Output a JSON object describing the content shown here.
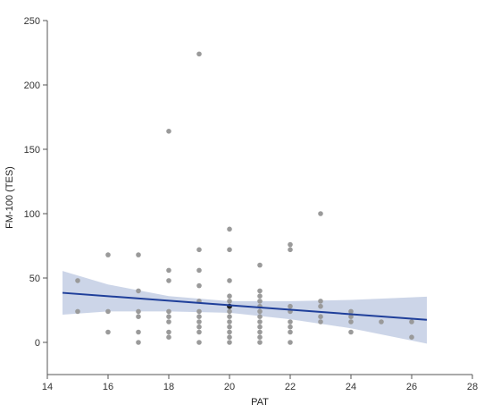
{
  "chart_data": {
    "type": "scatter",
    "xlabel": "PAT",
    "ylabel": "FM-100 (TES)",
    "xlim": [
      14,
      28
    ],
    "ylim": [
      -25,
      250
    ],
    "xticks": [
      14,
      16,
      18,
      20,
      22,
      24,
      26,
      28
    ],
    "yticks": [
      0,
      50,
      100,
      150,
      200,
      250
    ],
    "grid": false,
    "points": [
      [
        15,
        48
      ],
      [
        15,
        24
      ],
      [
        16,
        68
      ],
      [
        16,
        24
      ],
      [
        16,
        8
      ],
      [
        17,
        68
      ],
      [
        17,
        40
      ],
      [
        17,
        24
      ],
      [
        17,
        20
      ],
      [
        17,
        8
      ],
      [
        17,
        0
      ],
      [
        18,
        164
      ],
      [
        18,
        56
      ],
      [
        18,
        48
      ],
      [
        18,
        24
      ],
      [
        18,
        20
      ],
      [
        18,
        16
      ],
      [
        18,
        8
      ],
      [
        18,
        4
      ],
      [
        19,
        224
      ],
      [
        19,
        72
      ],
      [
        19,
        56
      ],
      [
        19,
        44
      ],
      [
        19,
        32
      ],
      [
        19,
        24
      ],
      [
        19,
        20
      ],
      [
        19,
        16
      ],
      [
        19,
        12
      ],
      [
        19,
        8
      ],
      [
        19,
        0
      ],
      [
        20,
        88
      ],
      [
        20,
        72
      ],
      [
        20,
        48
      ],
      [
        20,
        36
      ],
      [
        20,
        32
      ],
      [
        20,
        28
      ],
      [
        20,
        24
      ],
      [
        20,
        20
      ],
      [
        20,
        16
      ],
      [
        20,
        12
      ],
      [
        20,
        8
      ],
      [
        20,
        4
      ],
      [
        20,
        0
      ],
      [
        21,
        60
      ],
      [
        21,
        40
      ],
      [
        21,
        36
      ],
      [
        21,
        32
      ],
      [
        21,
        28
      ],
      [
        21,
        24
      ],
      [
        21,
        20
      ],
      [
        21,
        16
      ],
      [
        21,
        12
      ],
      [
        21,
        8
      ],
      [
        21,
        4
      ],
      [
        21,
        0
      ],
      [
        22,
        76
      ],
      [
        22,
        72
      ],
      [
        22,
        28
      ],
      [
        22,
        24
      ],
      [
        22,
        16
      ],
      [
        22,
        12
      ],
      [
        22,
        8
      ],
      [
        22,
        0
      ],
      [
        23,
        100
      ],
      [
        23,
        32
      ],
      [
        23,
        28
      ],
      [
        23,
        20
      ],
      [
        23,
        16
      ],
      [
        24,
        24
      ],
      [
        24,
        20
      ],
      [
        24,
        16
      ],
      [
        24,
        8
      ],
      [
        25,
        16
      ],
      [
        26,
        16
      ],
      [
        26,
        4
      ]
    ],
    "highlight_point": [
      20,
      28
    ],
    "fit_line": {
      "x": [
        14.5,
        26.5
      ],
      "y": [
        38.5,
        17.5
      ]
    },
    "confidence_band": {
      "x": [
        14.5,
        16,
        18,
        20,
        22,
        24,
        26.5
      ],
      "upper": [
        55.5,
        45,
        36,
        32,
        32,
        33,
        35.5
      ],
      "lower": [
        21.5,
        24,
        24,
        23,
        18,
        11,
        -1
      ]
    },
    "colors": {
      "points": "#9a9a9a",
      "highlight": "#222222",
      "fit_line": "#1f3f9a",
      "band": "#c6d0e6",
      "axis": "#555555"
    }
  }
}
